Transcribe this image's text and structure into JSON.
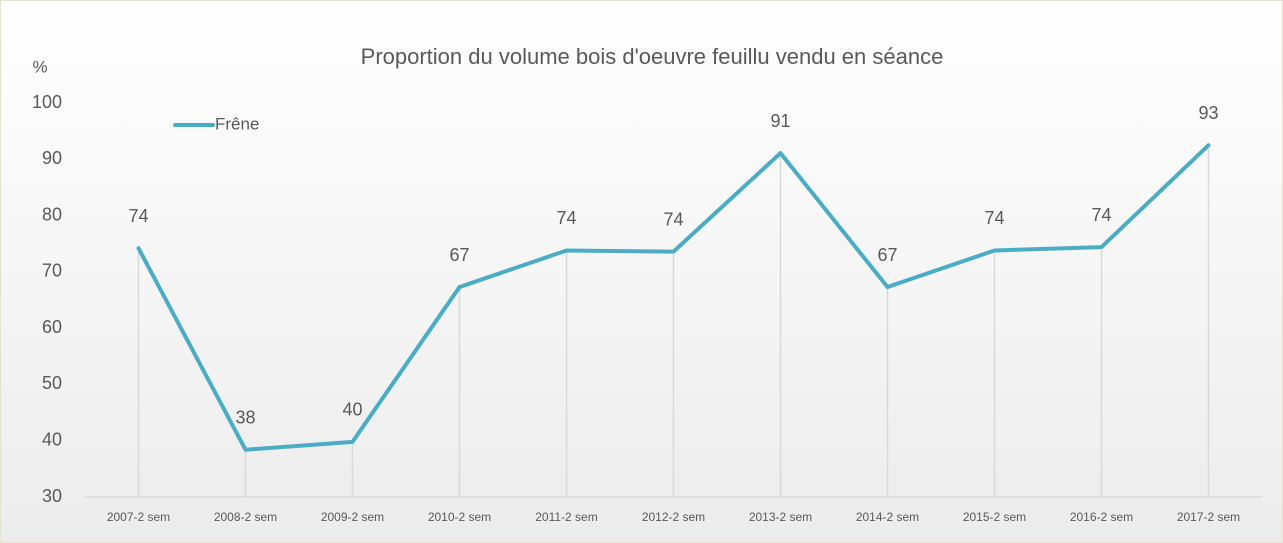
{
  "chart_data": {
    "type": "line",
    "title": "Proportion du volume bois d'oeuvre feuillu vendu en séance",
    "y_label": "%",
    "categories": [
      "2007-2 sem",
      "2008-2 sem",
      "2009-2 sem",
      "2010-2 sem",
      "2011-2 sem",
      "2012-2 sem",
      "2013-2 sem",
      "2014-2 sem",
      "2015-2 sem",
      "2016-2 sem",
      "2017-2 sem"
    ],
    "series": [
      {
        "name": "Frêne",
        "color": "#4bacc6",
        "values": [
          74.2,
          38.4,
          39.8,
          67.3,
          73.8,
          73.6,
          91.1,
          67.3,
          73.8,
          74.4,
          92.5
        ],
        "value_labels": [
          "74",
          "38",
          "40",
          "67",
          "74",
          "74",
          "91",
          "67",
          "74",
          "74",
          "93"
        ]
      }
    ],
    "ylim": [
      30,
      100
    ],
    "yticks": [
      30,
      40,
      50,
      60,
      70,
      80,
      90,
      100
    ],
    "legend": "top-left"
  }
}
